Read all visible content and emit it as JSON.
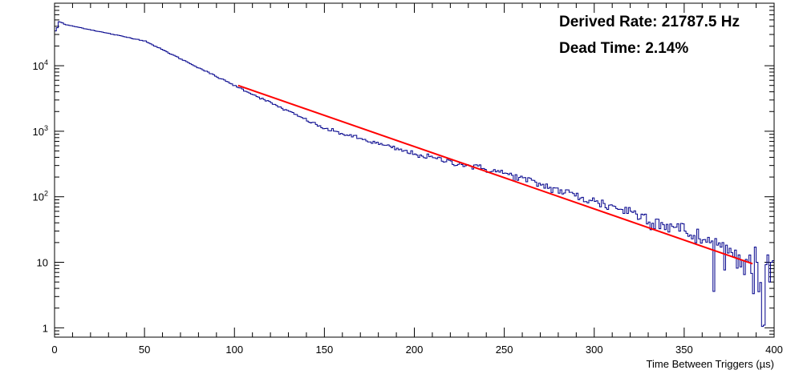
{
  "chart_data": {
    "type": "line",
    "title": "",
    "xlabel": "Time Between Triggers (µs)",
    "ylabel": "",
    "xlim": [
      0,
      400
    ],
    "ylim": [
      0.72,
      90000
    ],
    "y_scale": "log",
    "grid": false,
    "legend": "none",
    "x_ticks": [
      0,
      50,
      100,
      150,
      200,
      250,
      300,
      350,
      400
    ],
    "x_tick_labels": [
      "0",
      "50",
      "100",
      "150",
      "200",
      "250",
      "300",
      "350",
      "400"
    ],
    "y_ticks": [
      1,
      10,
      100,
      1000,
      10000
    ],
    "y_tick_labels": [
      {
        "base": "1",
        "exp": ""
      },
      {
        "base": "10",
        "exp": ""
      },
      {
        "base": "10",
        "exp": "2"
      },
      {
        "base": "10",
        "exp": "3"
      },
      {
        "base": "10",
        "exp": "4"
      }
    ],
    "series": [
      {
        "kind": "histogram",
        "color": "#00008b",
        "bin_width": 1,
        "x": [
          0,
          1,
          2,
          3,
          4,
          5,
          50,
          100,
          150,
          200,
          250,
          300,
          320,
          340,
          350,
          360,
          370,
          380,
          385,
          390,
          394,
          396,
          397,
          398,
          400
        ],
        "y": [
          34000,
          38000,
          47000,
          46000,
          45000,
          43000,
          24000,
          5000,
          1100,
          450,
          230,
          85,
          60,
          38,
          30,
          22,
          17,
          13,
          10,
          10,
          1.1,
          13,
          5,
          10,
          10
        ]
      },
      {
        "kind": "fit",
        "color": "#ff0000",
        "x": [
          102,
          388
        ],
        "y": [
          5000,
          9.5
        ]
      }
    ],
    "annotations": [
      {
        "text": "Derived Rate: 21787.5 Hz",
        "color": "#ff0000"
      },
      {
        "text": "Dead Time: 2.14%",
        "color": "#ff0000"
      }
    ]
  }
}
